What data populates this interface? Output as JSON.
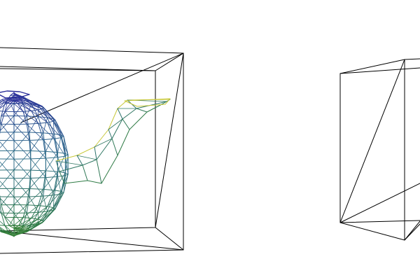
{
  "scene": {
    "background": "#ffffff",
    "bounding_box_color": "#000000",
    "objects": [
      {
        "name": "teapot",
        "kind": "wireframe-mesh",
        "color_gradient": [
          "#2b2f9a",
          "#2f6e8a",
          "#2f7d3a",
          "#c8c83a"
        ]
      },
      {
        "name": "cube",
        "kind": "wireframe-box",
        "color": "#000000"
      }
    ]
  }
}
